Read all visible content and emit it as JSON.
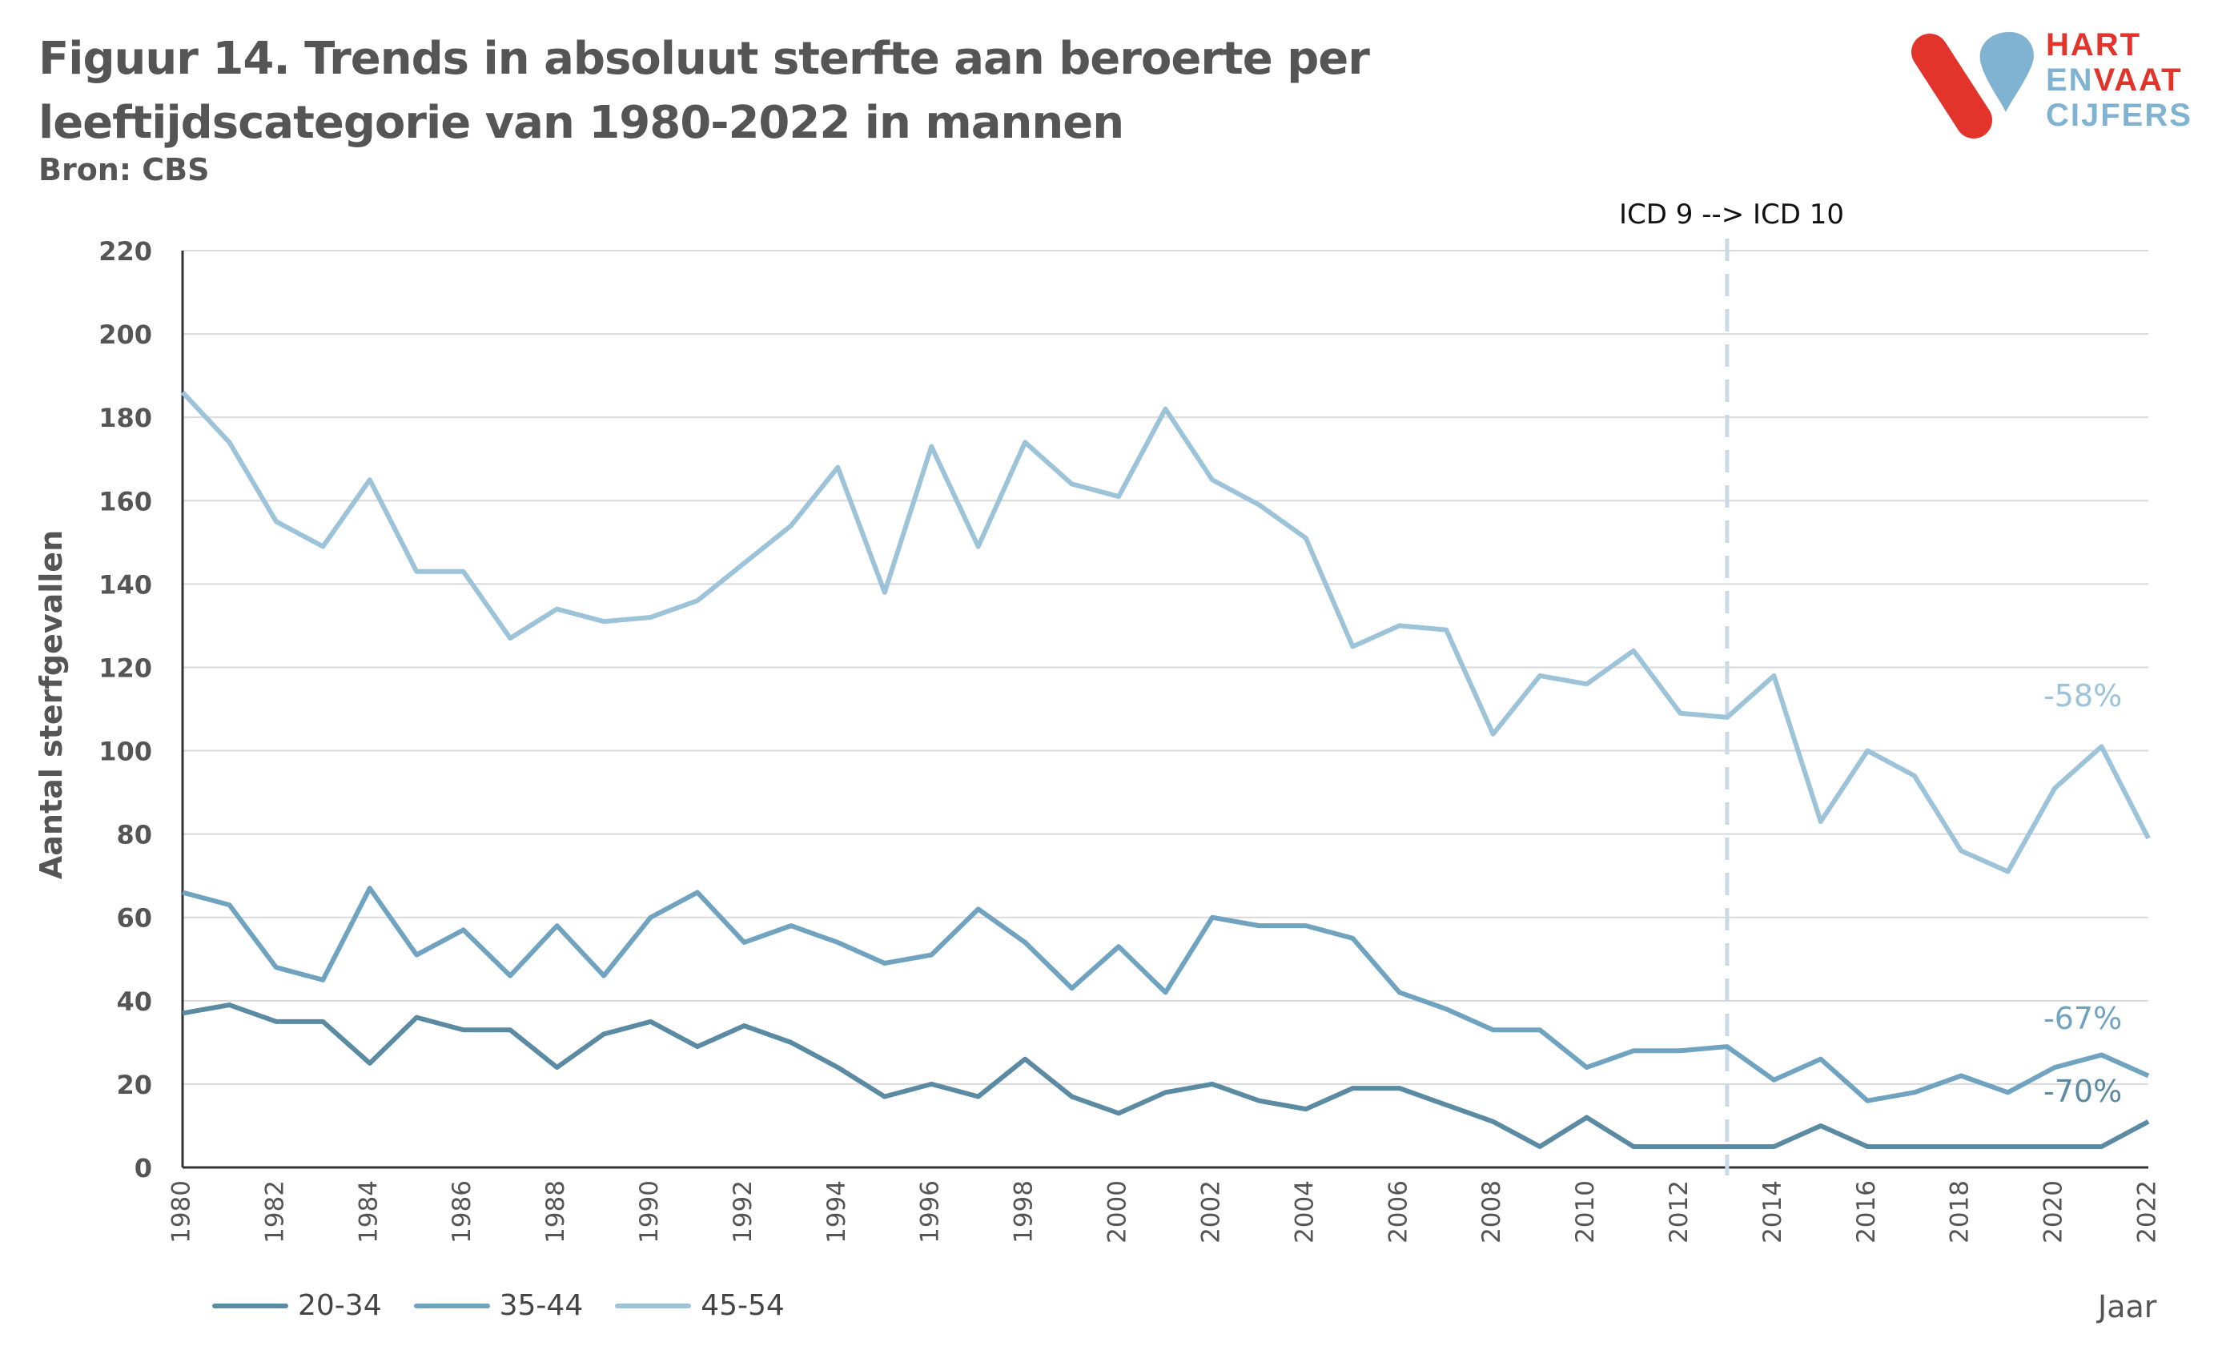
{
  "title": "Figuur 14. Trends in absoluut sterfte aan beroerte per leeftijdscategorie van 1980-2022 in mannen",
  "source": "Bron: CBS",
  "logo": {
    "line1": "HART",
    "line2a": "EN",
    "line2b": "VAAT",
    "line3": "CIJFERS",
    "colors": {
      "red": "#e3342b",
      "blue": "#7fb3d1"
    }
  },
  "annotation": "ICD 9  --> ICD 10",
  "chart_data": {
    "type": "line",
    "xlabel": "Jaar",
    "ylabel": "Aantal sterfgevallen",
    "ylim": [
      0,
      220
    ],
    "yticks": [
      0,
      20,
      40,
      60,
      80,
      100,
      120,
      140,
      160,
      180,
      200,
      220
    ],
    "xlim": [
      1980,
      2022
    ],
    "xticks": [
      1980,
      1982,
      1984,
      1986,
      1988,
      1990,
      1992,
      1994,
      1996,
      1998,
      2000,
      2002,
      2004,
      2006,
      2008,
      2010,
      2012,
      2014,
      2016,
      2018,
      2020,
      2022
    ],
    "grid": true,
    "legend_position": "bottom-left",
    "icd_change_year": 2013,
    "x": [
      1980,
      1981,
      1982,
      1983,
      1984,
      1985,
      1986,
      1987,
      1988,
      1989,
      1990,
      1991,
      1992,
      1993,
      1994,
      1995,
      1996,
      1997,
      1998,
      1999,
      2000,
      2001,
      2002,
      2003,
      2004,
      2005,
      2006,
      2007,
      2008,
      2009,
      2010,
      2011,
      2012,
      2013,
      2014,
      2015,
      2016,
      2017,
      2018,
      2019,
      2020,
      2021,
      2022
    ],
    "series": [
      {
        "name": "20-34",
        "color": "#5b8aa3",
        "change_label": "-70%",
        "values": [
          37,
          39,
          35,
          35,
          25,
          36,
          33,
          33,
          24,
          32,
          35,
          29,
          34,
          30,
          24,
          17,
          20,
          17,
          26,
          17,
          13,
          18,
          20,
          16,
          14,
          19,
          19,
          15,
          11,
          5,
          12,
          5,
          5,
          5,
          5,
          10,
          5,
          5,
          5,
          5,
          5,
          5,
          11
        ]
      },
      {
        "name": "35-44",
        "color": "#6fa3c0",
        "change_label": "-67%",
        "values": [
          66,
          63,
          48,
          45,
          67,
          51,
          57,
          46,
          58,
          46,
          60,
          66,
          54,
          58,
          54,
          49,
          51,
          62,
          54,
          43,
          53,
          42,
          60,
          58,
          58,
          55,
          42,
          38,
          33,
          33,
          24,
          28,
          28,
          29,
          21,
          26,
          16,
          18,
          22,
          18,
          24,
          27,
          22
        ]
      },
      {
        "name": "45-54",
        "color": "#9dc3d9",
        "change_label": "-58%",
        "values": [
          186,
          174,
          155,
          149,
          165,
          143,
          143,
          127,
          134,
          131,
          132,
          136,
          145,
          154,
          168,
          138,
          173,
          149,
          174,
          164,
          161,
          182,
          165,
          159,
          151,
          125,
          130,
          129,
          104,
          118,
          116,
          124,
          109,
          108,
          118,
          83,
          100,
          94,
          76,
          71,
          91,
          101,
          79
        ]
      }
    ]
  }
}
